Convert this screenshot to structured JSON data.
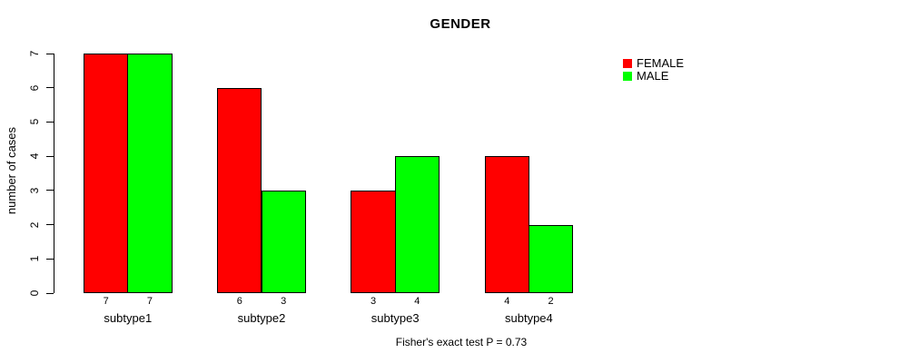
{
  "chart_data": {
    "type": "bar",
    "title": "GENDER",
    "xlabel": "",
    "ylabel": "number of cases",
    "categories": [
      "subtype1",
      "subtype2",
      "subtype3",
      "subtype4"
    ],
    "series": [
      {
        "name": "FEMALE",
        "color": "#ff0000",
        "values": [
          7,
          6,
          3,
          4
        ]
      },
      {
        "name": "MALE",
        "color": "#00ff00",
        "values": [
          7,
          3,
          4,
          2
        ]
      }
    ],
    "ylim": [
      0,
      7
    ],
    "yticks": [
      0,
      1,
      2,
      3,
      4,
      5,
      6,
      7
    ],
    "grid": false,
    "legend_position": "top-right",
    "bar_border_color": "#000000",
    "bar_value_labels_shown": true,
    "caption": "Fisher's exact test P = 0.73"
  }
}
